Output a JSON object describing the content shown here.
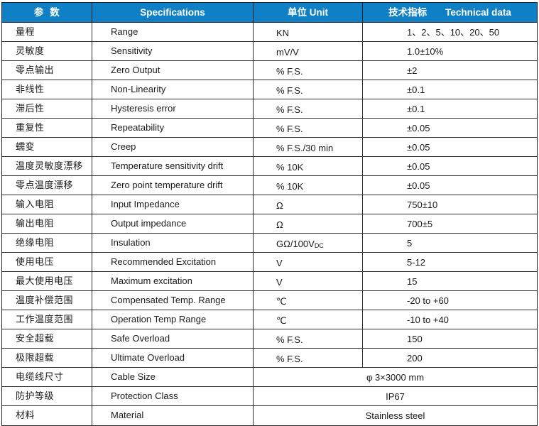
{
  "table": {
    "header": {
      "param_zh": "参  数",
      "spec_en": "Specifications",
      "unit": "单位 Unit",
      "tech_zh": "技术指标",
      "tech_en": "Technical data"
    },
    "rows": [
      {
        "param": "量程",
        "spec": "Range",
        "unit": "KN",
        "value": "1、2、5、10、20、50"
      },
      {
        "param": "灵敏度",
        "spec": "Sensitivity",
        "unit": "mV/V",
        "value": "1.0±10%"
      },
      {
        "param": "零点输出",
        "spec": "Zero Output",
        "unit": "% F.S.",
        "value": "±2"
      },
      {
        "param": "非线性",
        "spec": "Non-Linearity",
        "unit": "% F.S.",
        "value": "±0.1"
      },
      {
        "param": "滞后性",
        "spec": "Hysteresis error",
        "unit": "% F.S.",
        "value": "±0.1"
      },
      {
        "param": "重复性",
        "spec": "Repeatability",
        "unit": "% F.S.",
        "value": "±0.05"
      },
      {
        "param": "蠕变",
        "spec": "Creep",
        "unit": "% F.S./30 min",
        "value": "±0.05"
      },
      {
        "param": "温度灵敏度漂移",
        "spec": "Temperature sensitivity drift",
        "unit": "% 10K",
        "value": "±0.05"
      },
      {
        "param": "零点温度漂移",
        "spec": "Zero point temperature drift",
        "unit": "% 10K",
        "value": "±0.05"
      },
      {
        "param": "输入电阻",
        "spec": "Input Impedance",
        "unit": "Ω",
        "value": "750±10"
      },
      {
        "param": "输出电阻",
        "spec": "Output impedance",
        "unit": "Ω",
        "value": "700±5"
      },
      {
        "param": "绝缘电阻",
        "spec": "Insulation",
        "unit": "GΩ/100V",
        "unit_sub": "DC",
        "value": "5"
      },
      {
        "param": "使用电压",
        "spec": "Recommended Excitation",
        "unit": "V",
        "value": "5-12"
      },
      {
        "param": "最大使用电压",
        "spec": "Maximum excitation",
        "unit": "V",
        "value": "15"
      },
      {
        "param": "温度补偿范围",
        "spec": "Compensated Temp. Range",
        "unit": "℃",
        "value": "-20 to +60"
      },
      {
        "param": "工作温度范围",
        "spec": "Operation Temp Range",
        "unit": "℃",
        "value": "-10 to +40"
      },
      {
        "param": "安全超载",
        "spec": "Safe Overload",
        "unit": "% F.S.",
        "value": "150"
      },
      {
        "param": "极限超载",
        "spec": "Ultimate Overload",
        "unit": "% F.S.",
        "value": "200"
      },
      {
        "param": "电缆线尺寸",
        "spec": "Cable Size",
        "merged": true,
        "value": "φ 3×3000 mm"
      },
      {
        "param": "防护等级",
        "spec": "Protection Class",
        "merged": true,
        "value": "IP67"
      },
      {
        "param": "材料",
        "spec": "Material",
        "merged": true,
        "value": "Stainless steel"
      }
    ],
    "colors": {
      "header_bg": "#0F80C6",
      "header_text": "#FFFFFF",
      "border": "#2E2E2E",
      "text": "#1A1A1A"
    }
  }
}
